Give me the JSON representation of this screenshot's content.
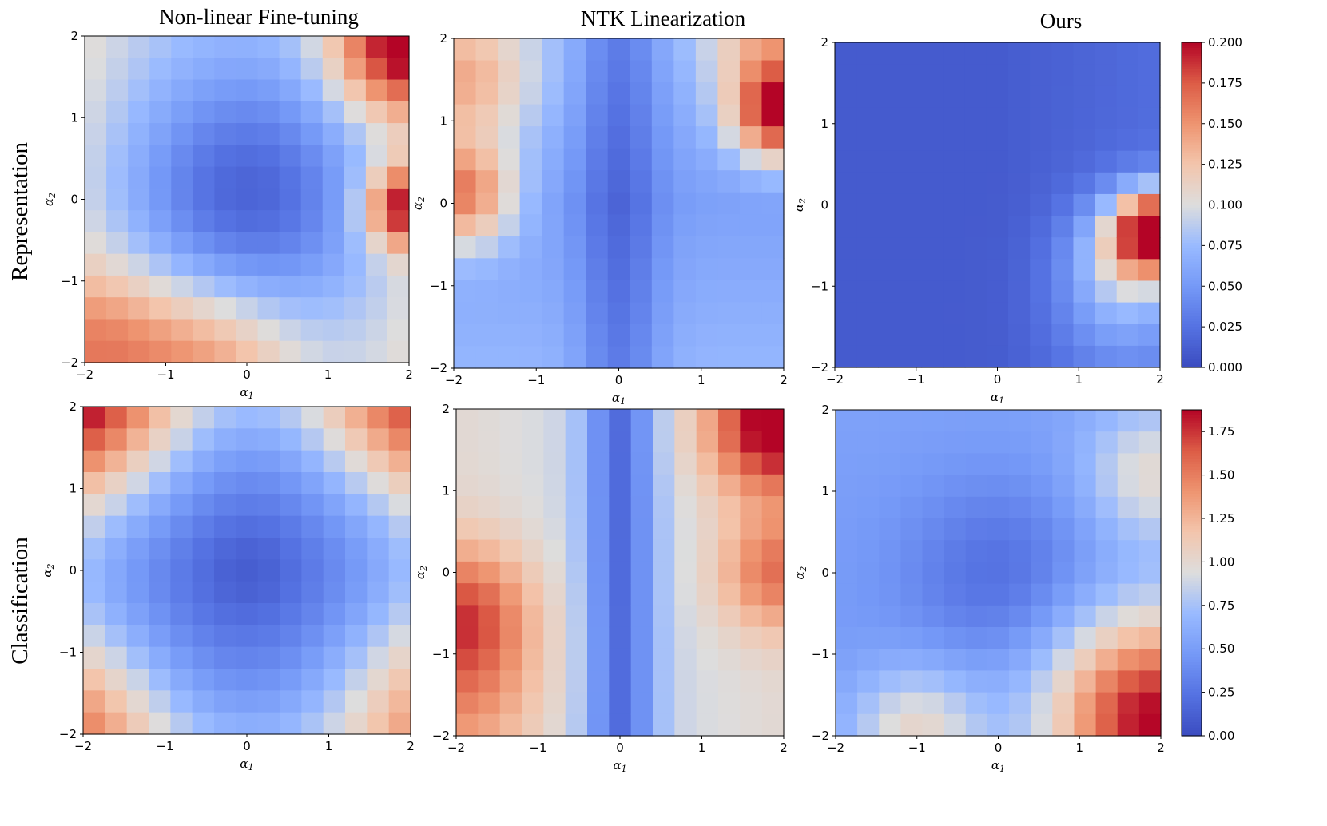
{
  "figure": {
    "column_titles": [
      "Non-linear Fine-tuning",
      "NTK Linearization",
      "Ours"
    ],
    "row_labels": [
      "Representation",
      "Classification"
    ]
  },
  "chart_data": [
    {
      "type": "heatmap",
      "name": "rep-nonlinear",
      "row": "Representation",
      "column": "Non-linear Fine-tuning",
      "xlabel": "α1",
      "ylabel": "α2",
      "xlim": [
        -2,
        2
      ],
      "ylim": [
        -2,
        2
      ],
      "xticks": [
        "−2",
        "−1",
        "0",
        "1",
        "2"
      ],
      "yticks": [
        "−2",
        "−1",
        "0",
        "1",
        "2"
      ],
      "colormap": "coolwarm",
      "vmin": 0.0,
      "vmax": 0.2,
      "grid_size": 15,
      "description": "Loss landscape: minimum near origin, high along top-right column and bottom rows",
      "max_value": 0.2,
      "min_value": 0.02
    },
    {
      "type": "heatmap",
      "name": "rep-ntk",
      "row": "Representation",
      "column": "NTK Linearization",
      "xlabel": "α1",
      "ylabel": "α2",
      "xlim": [
        -2,
        2
      ],
      "ylim": [
        -2,
        2
      ],
      "xticks": [
        "−2",
        "−1",
        "0",
        "1",
        "2"
      ],
      "yticks": [
        "−2",
        "−1",
        "0",
        "1",
        "2"
      ],
      "colormap": "coolwarm",
      "vmin": 0.0,
      "vmax": 0.2,
      "grid_size": 15,
      "description": "Low valley along α1=0, high at right edge (α1≈2, α2≈1) and left edge (α1≈-2, α2≈0)",
      "max_value": 0.2,
      "min_value": 0.0
    },
    {
      "type": "heatmap",
      "name": "rep-ours",
      "row": "Representation",
      "column": "Ours",
      "xlabel": "α1",
      "ylabel": "α2",
      "xlim": [
        -2,
        2
      ],
      "ylim": [
        -2,
        2
      ],
      "xticks": [
        "−2",
        "−1",
        "0",
        "1",
        "2"
      ],
      "yticks": [
        "−2",
        "−1",
        "0",
        "1",
        "2"
      ],
      "colormap": "coolwarm",
      "vmin": 0.0,
      "vmax": 0.2,
      "grid_size": 15,
      "description": "Mostly low everywhere; small high region near α1≈2, α2≈-0.3",
      "max_value": 0.19,
      "min_value": 0.0
    },
    {
      "type": "heatmap",
      "name": "cls-nonlinear",
      "row": "Classification",
      "column": "Non-linear Fine-tuning",
      "xlabel": "α1",
      "ylabel": "α2",
      "xlim": [
        -2,
        2
      ],
      "ylim": [
        -2,
        2
      ],
      "xticks": [
        "−2",
        "−1",
        "0",
        "1",
        "2"
      ],
      "yticks": [
        "−2",
        "−1",
        "0",
        "1",
        "2"
      ],
      "colormap": "coolwarm",
      "vmin": 0.0,
      "vmax": 1.875,
      "grid_size": 15,
      "description": "Minimum at origin, high at top corners and along bottom/left borders",
      "max_value": 1.875,
      "min_value": 0.05
    },
    {
      "type": "heatmap",
      "name": "cls-ntk",
      "row": "Classification",
      "column": "NTK Linearization",
      "xlabel": "α1",
      "ylabel": "α2",
      "xlim": [
        -2,
        2
      ],
      "ylim": [
        -2,
        2
      ],
      "xticks": [
        "−2",
        "−1",
        "0",
        "1",
        "2"
      ],
      "yticks": [
        "−2",
        "−1",
        "0",
        "1",
        "2"
      ],
      "colormap": "coolwarm",
      "vmin": 0.0,
      "vmax": 1.875,
      "grid_size": 15,
      "description": "Low valley along α1=0, high at right edge top and left edge bottom",
      "max_value": 1.875,
      "min_value": 0.05
    },
    {
      "type": "heatmap",
      "name": "cls-ours",
      "row": "Classification",
      "column": "Ours",
      "xlabel": "α1",
      "ylabel": "α2",
      "xlim": [
        -2,
        2
      ],
      "ylim": [
        -2,
        2
      ],
      "xticks": [
        "−2",
        "−1",
        "0",
        "1",
        "2"
      ],
      "yticks": [
        "−2",
        "−1",
        "0",
        "1",
        "2"
      ],
      "colormap": "coolwarm",
      "vmin": 0.0,
      "vmax": 1.875,
      "grid_size": 15,
      "description": "Low region left/center, high in lower-right corner",
      "max_value": 1.875,
      "min_value": 0.05
    }
  ],
  "colorbars": [
    {
      "name": "colorbar-representation",
      "vmin": 0.0,
      "vmax": 0.2,
      "ticks": [
        0.0,
        0.025,
        0.05,
        0.075,
        0.1,
        0.125,
        0.15,
        0.175,
        0.2
      ],
      "tick_labels": [
        "0.000",
        "0.025",
        "0.050",
        "0.075",
        "0.100",
        "0.125",
        "0.150",
        "0.175",
        "0.200"
      ]
    },
    {
      "name": "colorbar-classification",
      "vmin": 0.0,
      "vmax": 1.875,
      "ticks": [
        0.0,
        0.25,
        0.5,
        0.75,
        1.0,
        1.25,
        1.5,
        1.75
      ],
      "tick_labels": [
        "0.00",
        "0.25",
        "0.50",
        "0.75",
        "1.00",
        "1.25",
        "1.50",
        "1.75"
      ]
    }
  ]
}
